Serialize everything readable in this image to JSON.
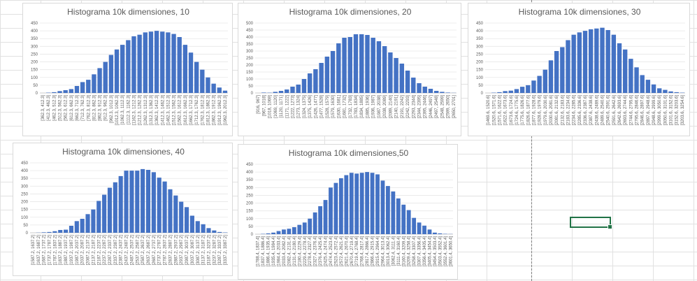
{
  "sheet": {
    "gridline_color": "#e1e1e1",
    "bar_color": "#4472c4",
    "selection_color": "#217346"
  },
  "chart_data": [
    {
      "type": "bar",
      "title": "Histograma 10k dimensiones, 10",
      "ylim": [
        0,
        450
      ],
      "yticks": [
        0,
        50,
        100,
        150,
        200,
        250,
        300,
        350,
        400,
        450
      ],
      "categories": [
        "[362.3, 412.3]",
        "[412.3, 462.3]",
        "[462.3, 512.3]",
        "[512.3, 562.3]",
        "[562.3, 612.3]",
        "[612.3, 662.3]",
        "[662.3, 712.3]",
        "[712.3, 762.3]",
        "[762.3, 812.3]",
        "[812.3, 862.3]",
        "[862.3, 912.3]",
        "[912.3, 962.3]",
        "[962.3, 1012.3]",
        "[1012.3, 1062.3]",
        "[1062.3, 1112.3]",
        "[1112.3, 1162.3]",
        "[1162.3, 1212.3]",
        "[1212.3, 1262.3]",
        "[1262.3, 1312.3]",
        "[1312.3, 1362.3]",
        "[1362.3, 1412.3]",
        "[1412.3, 1462.3]",
        "[1462.3, 1512.3]",
        "[1512.3, 1562.3]",
        "[1562.3, 1612.3]",
        "[1612.3, 1662.3]",
        "[1662.3, 1712.3]",
        "[1712.3, 1762.3]",
        "[1762.3, 1812.3]",
        "[1812.3, 1862.3]",
        "[1862.3, 1912.3]",
        "[1912.3, 1962.3]",
        "[1962.3, 2012.3]"
      ],
      "values": [
        0,
        2,
        5,
        12,
        18,
        25,
        45,
        70,
        85,
        120,
        160,
        200,
        245,
        280,
        310,
        340,
        365,
        375,
        390,
        395,
        400,
        395,
        390,
        380,
        360,
        310,
        260,
        200,
        150,
        100,
        60,
        35,
        15
      ]
    },
    {
      "type": "bar",
      "title": "Histograma 10k dimensiones, 20",
      "ylim": [
        0,
        500
      ],
      "yticks": [
        0,
        50,
        100,
        150,
        200,
        250,
        300,
        350,
        400,
        450,
        500
      ],
      "categories": [
        "[916, 967]",
        "[967, 1018]",
        "[1018, 1069]",
        "[1069, 1120]",
        "[1120, 1171]",
        "[1171, 1222]",
        "[1222, 1273]",
        "[1273, 1324]",
        "[1324, 1375]",
        "[1375, 1426]",
        "[1426, 1477]",
        "[1477, 1528]",
        "[1528, 1579]",
        "[1579, 1630]",
        "[1630, 1681]",
        "[1681, 1732]",
        "[1732, 1783]",
        "[1783, 1834]",
        "[1834, 1885]",
        "[1885, 1936]",
        "[1936, 1987]",
        "[1987, 2038]",
        "[2038, 2089]",
        "[2089, 2140]",
        "[2140, 2191]",
        "[2191, 2242]",
        "[2242, 2293]",
        "[2293, 2344]",
        "[2344, 2395]",
        "[2395, 2446]",
        "[2446, 2497]",
        "[2497, 2548]",
        "[2548, 2599]",
        "[2599, 2650]",
        "[2650, 2701]"
      ],
      "values": [
        0,
        3,
        2,
        8,
        15,
        25,
        45,
        60,
        100,
        140,
        170,
        215,
        260,
        300,
        355,
        395,
        400,
        420,
        420,
        415,
        395,
        370,
        335,
        290,
        250,
        210,
        160,
        110,
        70,
        45,
        30,
        15,
        8,
        3,
        1
      ]
    },
    {
      "type": "bar",
      "title": "Histograma 10k dimensiones, 30",
      "ylim": [
        0,
        450
      ],
      "yticks": [
        0,
        50,
        100,
        150,
        200,
        250,
        300,
        350,
        400,
        450
      ],
      "categories": [
        "[1469.6, 1520.6]",
        "[1520.6, 1571.6]",
        "[1571.6, 1622.6]",
        "[1622.6, 1673.6]",
        "[1673.6, 1724.6]",
        "[1724.6, 1775.6]",
        "[1775.6, 1826.6]",
        "[1826.6, 1877.6]",
        "[1877.6, 1928.6]",
        "[1928.6, 1979.6]",
        "[1979.6, 2030.6]",
        "[2030.6, 2081.6]",
        "[2081.6, 2132.6]",
        "[2132.6, 2183.6]",
        "[2183.6, 2234.6]",
        "[2234.6, 2285.6]",
        "[2285.6, 2336.6]",
        "[2336.6, 2387.6]",
        "[2387.6, 2438.6]",
        "[2438.6, 2489.6]",
        "[2489.6, 2540.6]",
        "[2540.6, 2591.6]",
        "[2591.6, 2642.6]",
        "[2642.6, 2693.6]",
        "[2693.6, 2744.6]",
        "[2744.6, 2795.6]",
        "[2795.6, 2846.6]",
        "[2846.6, 2897.6]",
        "[2897.6, 2948.6]",
        "[2948.6, 2999.6]",
        "[2999.6, 3050.6]",
        "[3050.6, 3101.6]",
        "[3101.6, 3152.6]",
        "[3152.6, 3203.6]",
        "[3203.6, 3254.6]"
      ],
      "values": [
        0,
        2,
        5,
        12,
        15,
        25,
        40,
        50,
        80,
        110,
        150,
        210,
        270,
        295,
        340,
        375,
        390,
        400,
        410,
        415,
        420,
        405,
        375,
        320,
        280,
        220,
        165,
        115,
        85,
        55,
        30,
        20,
        10,
        5,
        2
      ]
    },
    {
      "type": "bar",
      "title": "Histograma 10k dimensiones, 40",
      "ylim": [
        0,
        450
      ],
      "yticks": [
        0,
        50,
        100,
        150,
        200,
        250,
        300,
        350,
        400,
        450
      ],
      "categories": [
        "[1587.2, 1637.2]",
        "[1637.2, 1687.2]",
        "[1687.2, 1737.2]",
        "[1737.2, 1787.2]",
        "[1787.2, 1837.2]",
        "[1837.2, 1887.2]",
        "[1887.2, 1937.2]",
        "[1937.2, 1987.2]",
        "[1987.2, 2037.2]",
        "[2037.2, 2087.2]",
        "[2087.2, 2137.2]",
        "[2137.2, 2187.2]",
        "[2187.2, 2237.2]",
        "[2237.2, 2287.2]",
        "[2287.2, 2337.2]",
        "[2337.2, 2387.2]",
        "[2387.2, 2437.2]",
        "[2437.2, 2487.2]",
        "[2487.2, 2537.2]",
        "[2537.2, 2587.2]",
        "[2587.2, 2637.2]",
        "[2637.2, 2687.2]",
        "[2687.2, 2737.2]",
        "[2737.2, 2787.2]",
        "[2787.2, 2837.2]",
        "[2837.2, 2887.2]",
        "[2887.2, 2937.2]",
        "[2937.2, 2987.2]",
        "[2987.2, 3037.2]",
        "[3037.2, 3087.2]",
        "[3087.2, 3137.2]",
        "[3137.2, 3187.2]",
        "[3187.2, 3237.2]",
        "[3237.2, 3287.2]",
        "[3287.2, 3337.2]",
        "[3337.2, 3387.2]"
      ],
      "values": [
        0,
        1,
        3,
        5,
        10,
        18,
        20,
        45,
        75,
        90,
        120,
        150,
        205,
        245,
        290,
        325,
        365,
        400,
        400,
        400,
        410,
        405,
        390,
        355,
        330,
        280,
        240,
        200,
        165,
        110,
        75,
        55,
        30,
        15,
        5,
        2
      ]
    },
    {
      "type": "bar",
      "title": "Histograma 10k dimensiones,50",
      "ylim": [
        0,
        450
      ],
      "yticks": [
        0,
        50,
        100,
        150,
        200,
        250,
        300,
        350,
        400,
        450
      ],
      "categories": [
        "[1788.4, 1837.4]",
        "[1837.4, 1886.4]",
        "[1886.4, 1935.4]",
        "[1935.4, 1984.4]",
        "[1984.4, 2033.4]",
        "[2033.4, 2082.4]",
        "[2082.4, 2131.4]",
        "[2131.4, 2180.4]",
        "[2180.4, 2229.4]",
        "[2229.4, 2278.4]",
        "[2278.4, 2327.4]",
        "[2327.4, 2376.4]",
        "[2376.4, 2425.4]",
        "[2425.4, 2474.4]",
        "[2474.4, 2523.4]",
        "[2523.4, 2572.4]",
        "[2572.4, 2621.4]",
        "[2621.4, 2670.4]",
        "[2670.4, 2719.4]",
        "[2719.4, 2768.4]",
        "[2768.4, 2817.4]",
        "[2817.4, 2866.4]",
        "[2866.4, 2915.4]",
        "[2915.4, 2964.4]",
        "[2964.4, 3013.4]",
        "[3013.4, 3062.4]",
        "[3062.4, 3111.4]",
        "[3111.4, 3160.4]",
        "[3160.4, 3209.4]",
        "[3209.4, 3258.4]",
        "[3258.4, 3307.4]",
        "[3307.4, 3356.4]",
        "[3356.4, 3405.4]",
        "[3405.4, 3454.4]",
        "[3454.4, 3503.4]",
        "[3503.4, 3552.4]",
        "[3552.4, 3601.4]",
        "[3601.4, 3650.4]"
      ],
      "values": [
        0,
        2,
        5,
        10,
        20,
        30,
        35,
        45,
        60,
        75,
        100,
        140,
        180,
        220,
        300,
        330,
        360,
        380,
        395,
        390,
        395,
        400,
        395,
        385,
        345,
        310,
        275,
        230,
        190,
        155,
        105,
        75,
        55,
        30,
        10,
        5,
        2,
        1
      ]
    }
  ]
}
